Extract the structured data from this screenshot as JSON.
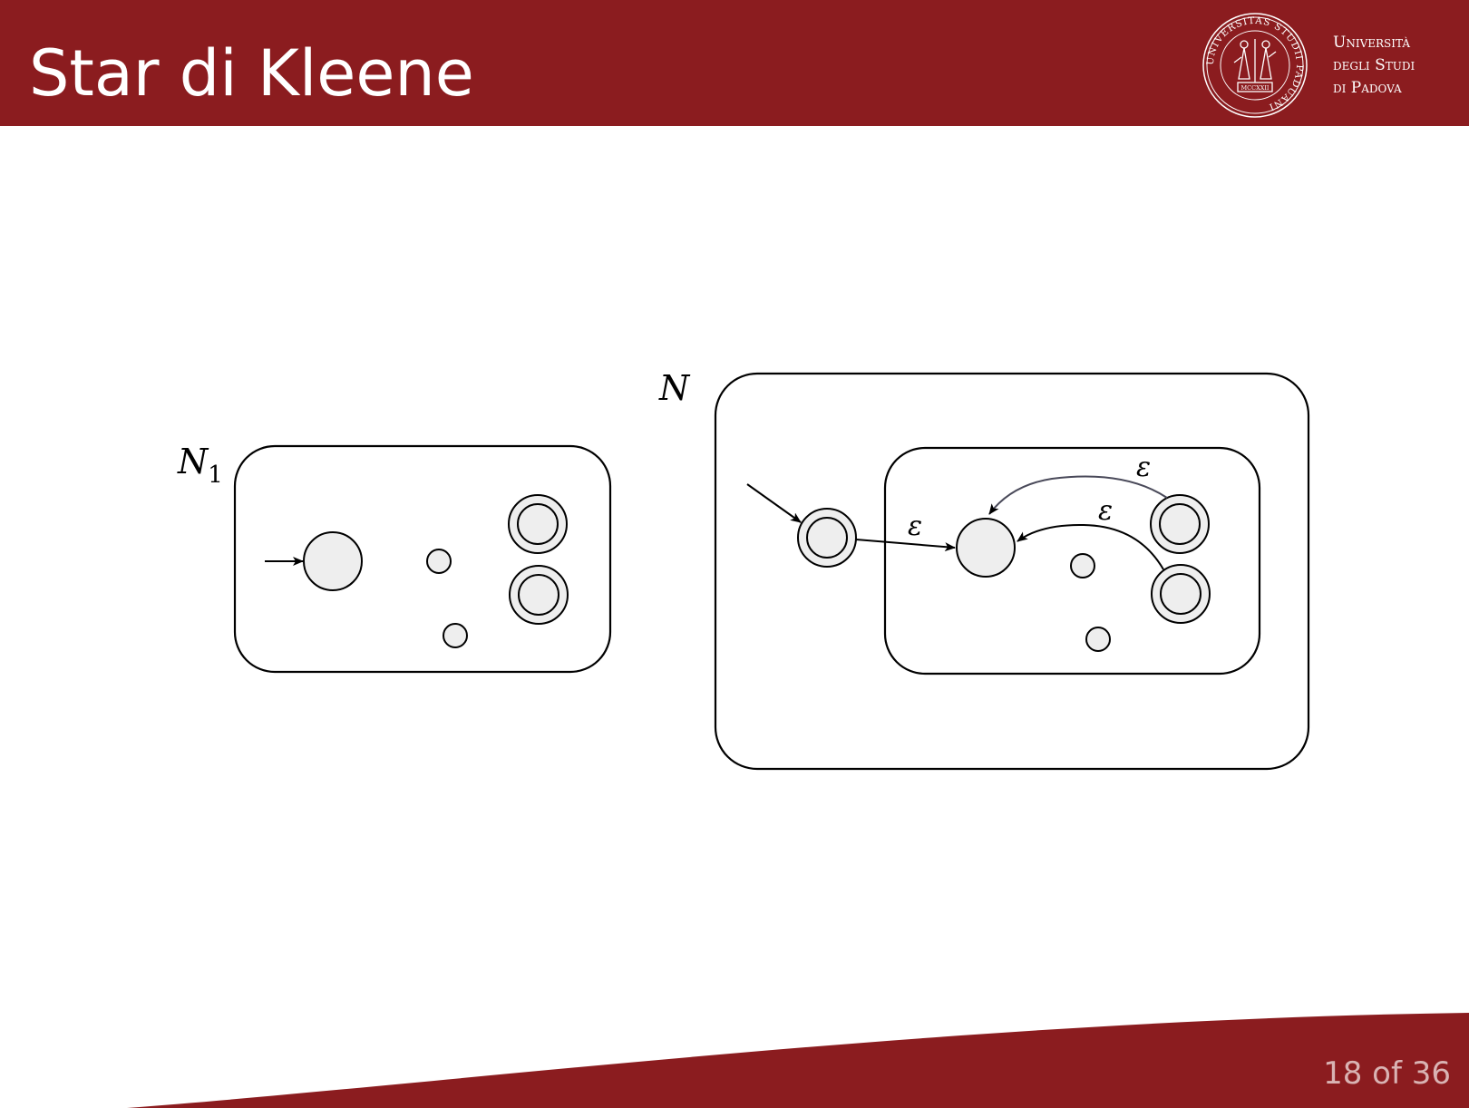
{
  "slide": {
    "title": "Star di Kleene",
    "university": {
      "line1": "Università",
      "line2": "degli Studi",
      "line3": "di Padova"
    },
    "seal_text": "UNIVERSITAS STUDII PADUANI",
    "seal_year": "MCCXXII",
    "page": {
      "current": "18",
      "sep": "of",
      "total": "36"
    }
  },
  "diagram": {
    "n1_label": "N",
    "n1_sub": "1",
    "n_label": "N",
    "edge_labels": [
      "ε",
      "ε",
      "ε"
    ]
  },
  "colors": {
    "brand": "#8b1c1f",
    "state_fill": "#eeeeee",
    "stroke": "#000000",
    "page_number": "#d9b3b3"
  }
}
